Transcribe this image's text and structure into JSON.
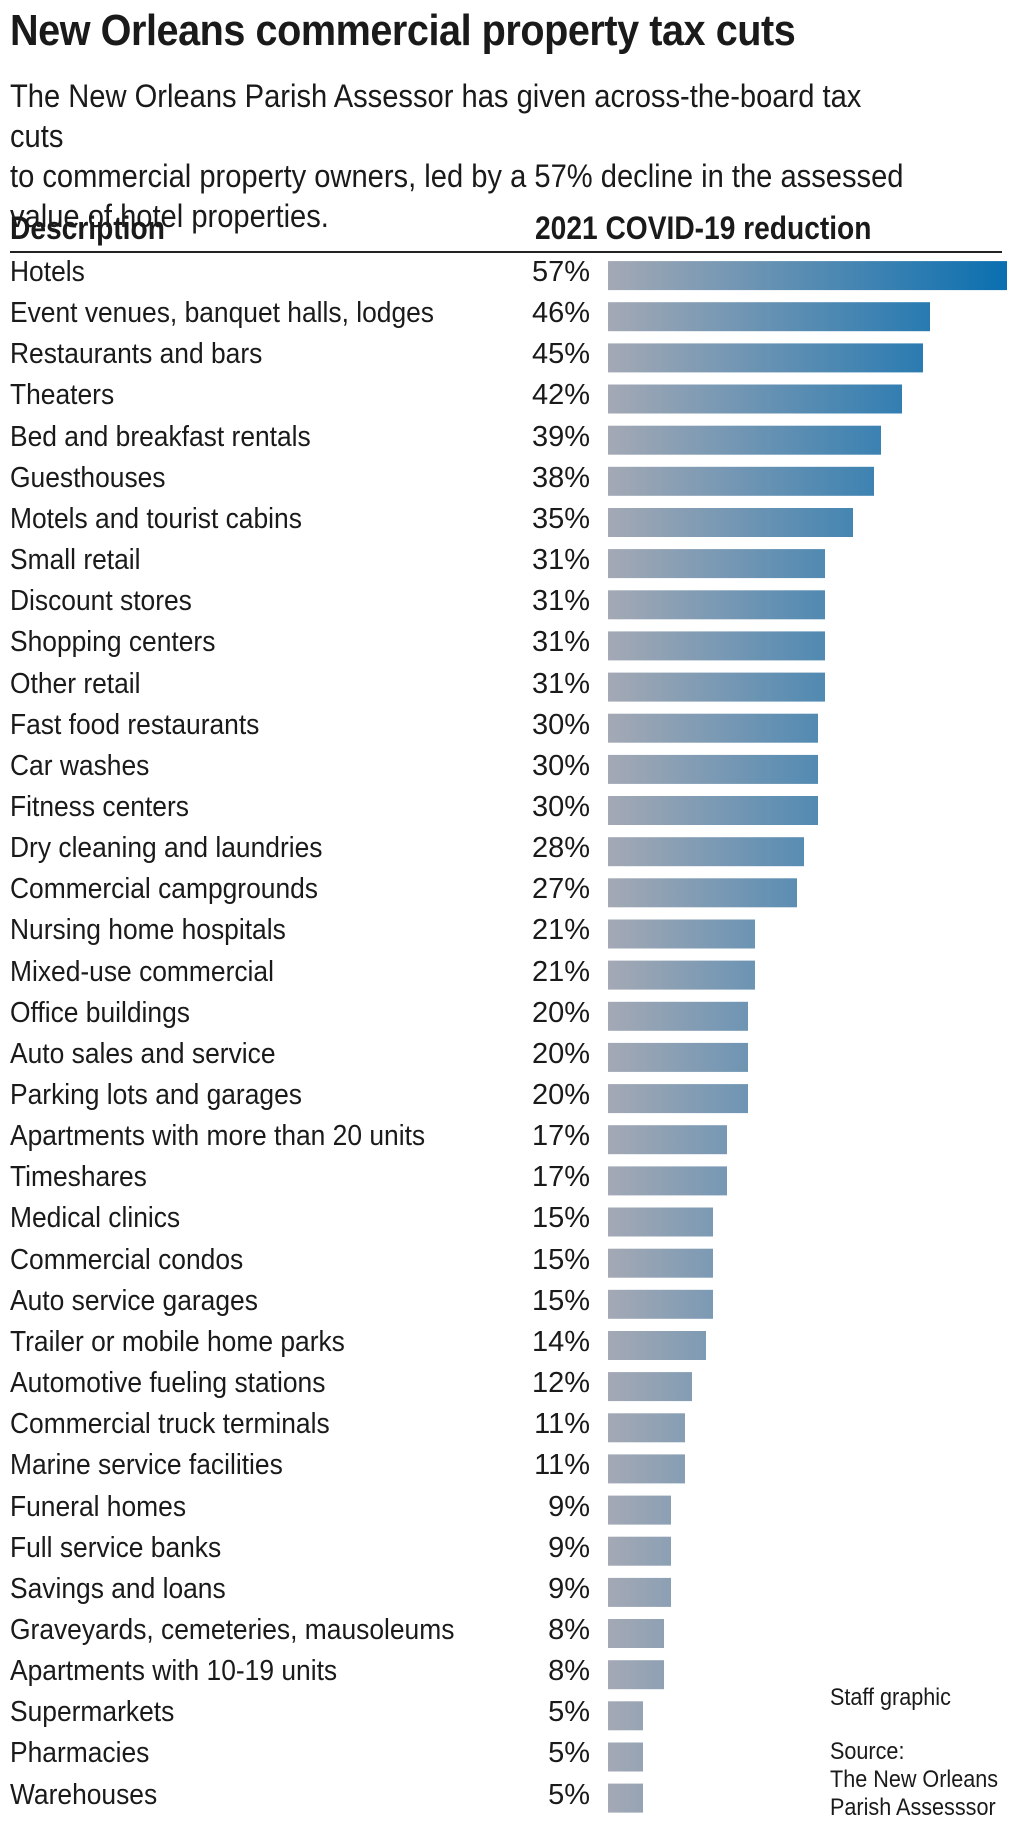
{
  "title": "New Orleans commercial property tax cuts",
  "subtitle": "The New Orleans Parish Assessor has given across-the-board tax cuts\nto commercial property owners, led by a 57% decline in the assessed\nvalue of hotel properties.",
  "columns": {
    "description": "Description",
    "value": "2021 COVID-19 reduction"
  },
  "credit": {
    "staff": "Staff graphic",
    "source_label": "Source:",
    "source_line1": "The New Orleans",
    "source_line2": "Parish Assesssor"
  },
  "colors": {
    "bar_start": "#a4a9b5",
    "bar_end": "#0a6fb0",
    "text": "#1a1a1a"
  },
  "chart_data": {
    "type": "bar",
    "orientation": "horizontal",
    "title": "New Orleans commercial property tax cuts",
    "xlabel": "2021 COVID-19 reduction",
    "ylabel": "Description",
    "unit": "%",
    "xlim": [
      0,
      57
    ],
    "categories": [
      "Hotels",
      "Event venues, banquet halls, lodges",
      "Restaurants and bars",
      "Theaters",
      "Bed and breakfast rentals",
      "Guesthouses",
      "Motels and tourist cabins",
      "Small retail",
      "Discount stores",
      "Shopping centers",
      "Other retail",
      "Fast food restaurants",
      "Car washes",
      "Fitness centers",
      "Dry cleaning and laundries",
      "Commercial campgrounds",
      "Nursing home hospitals",
      "Mixed-use commercial",
      "Office buildings",
      "Auto sales and service",
      "Parking lots and garages",
      "Apartments with more than 20 units",
      "Timeshares",
      "Medical clinics",
      "Commercial condos",
      "Auto service garages",
      "Trailer or mobile home parks",
      "Automotive fueling stations",
      "Commercial truck terminals",
      "Marine service facilities",
      "Funeral homes",
      "Full service banks",
      "Savings and loans",
      "Graveyards, cemeteries, mausoleums",
      "Apartments with 10-19 units",
      "Supermarkets",
      "Pharmacies",
      "Warehouses"
    ],
    "values": [
      57,
      46,
      45,
      42,
      39,
      38,
      35,
      31,
      31,
      31,
      31,
      30,
      30,
      30,
      28,
      27,
      21,
      21,
      20,
      20,
      20,
      17,
      17,
      15,
      15,
      15,
      14,
      12,
      11,
      11,
      9,
      9,
      9,
      8,
      8,
      5,
      5,
      5
    ],
    "labels": [
      "57%",
      "46%",
      "45%",
      "42%",
      "39%",
      "38%",
      "35%",
      "31%",
      "31%",
      "31%",
      "31%",
      "30%",
      "30%",
      "30%",
      "28%",
      "27%",
      "21%",
      "21%",
      "20%",
      "20%",
      "20%",
      "17%",
      "17%",
      "15%",
      "15%",
      "15%",
      "14%",
      "12%",
      "11%",
      "11%",
      "9%",
      "9%",
      "9%",
      "8%",
      "8%",
      "5%",
      "5%",
      "5%"
    ]
  }
}
